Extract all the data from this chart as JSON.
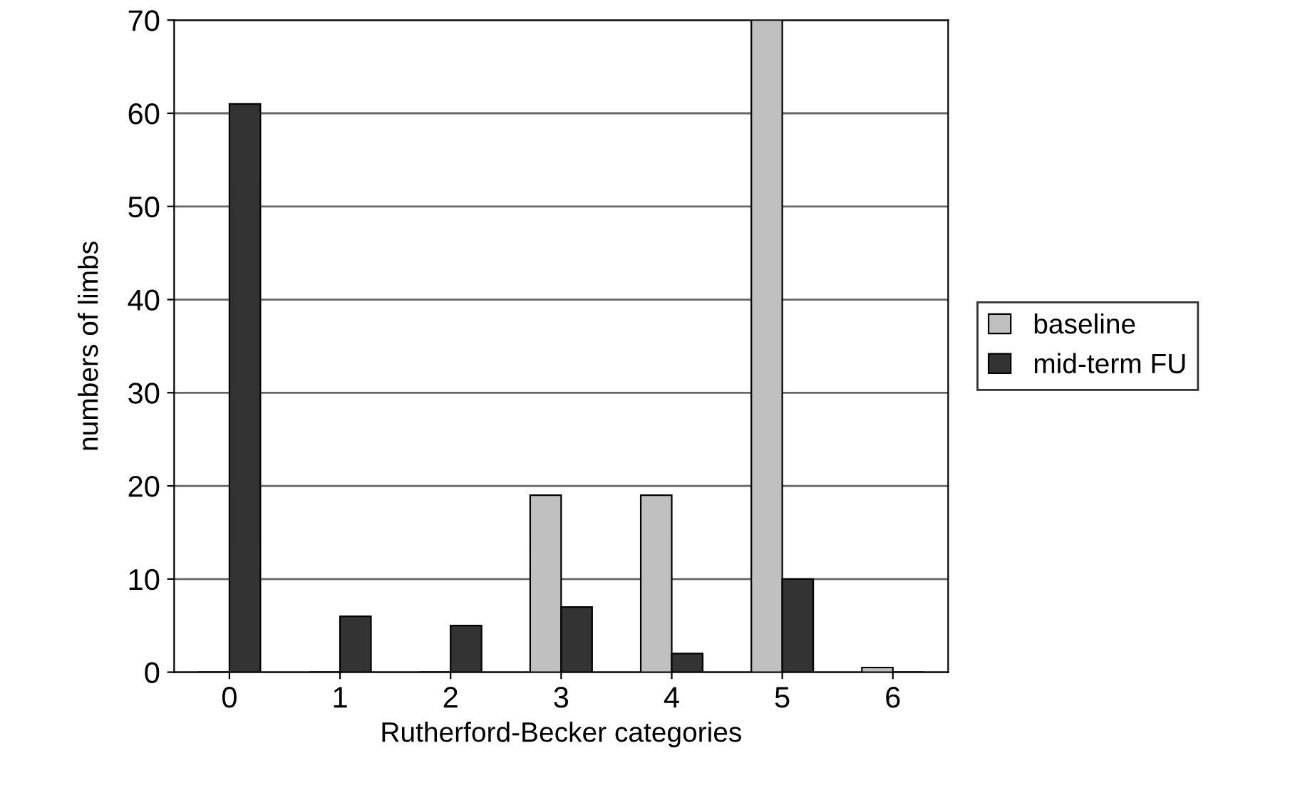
{
  "chart_data": {
    "type": "bar",
    "xlabel": "Rutherford-Becker categories",
    "ylabel": "numbers of limbs",
    "categories": [
      "0",
      "1",
      "2",
      "3",
      "4",
      "5",
      "6"
    ],
    "series": [
      {
        "name": "baseline",
        "color": "#c0c0c0",
        "values": [
          0,
          0,
          0,
          19,
          19,
          70,
          0.5
        ]
      },
      {
        "name": "mid-term FU",
        "color": "#333333",
        "values": [
          61,
          6,
          5,
          7,
          2,
          10,
          0
        ]
      }
    ],
    "ylim": [
      0,
      70
    ],
    "yticks": [
      0,
      10,
      20,
      30,
      40,
      50,
      60,
      70
    ],
    "grid": "y",
    "legend": "right"
  }
}
